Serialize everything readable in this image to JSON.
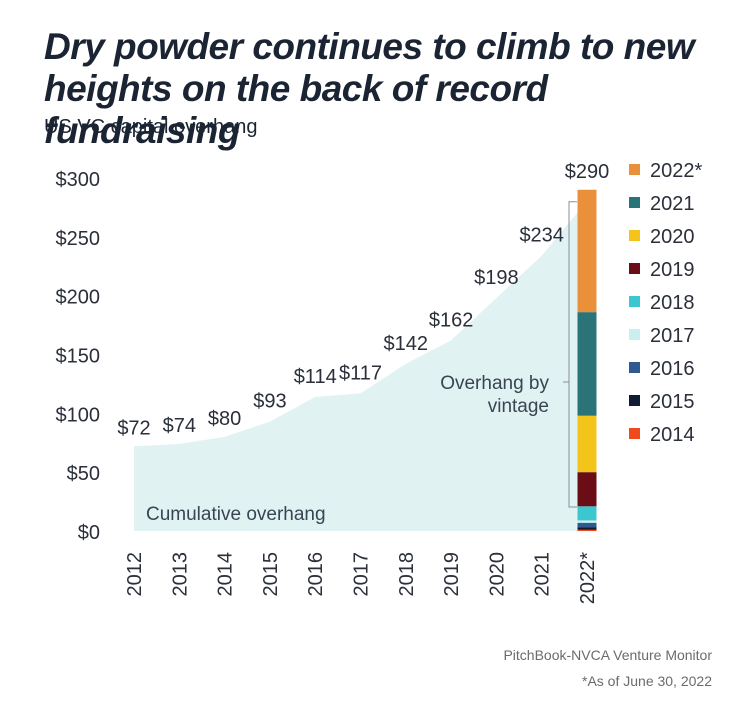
{
  "title": "Dry powder continues to climb to new heights on the back of record fundraising",
  "subtitle": "US VC capital overhang",
  "source": "PitchBook-NVCA Venture Monitor",
  "footnote": "*As of June 30, 2022",
  "colors": {
    "area": "#e1f2f2",
    "text": "#1b2433",
    "axis_text": "#2a2f3a"
  },
  "chart_data": {
    "type": "area",
    "x": [
      "2012",
      "2013",
      "2014",
      "2015",
      "2016",
      "2017",
      "2018",
      "2019",
      "2020",
      "2021",
      "2022*"
    ],
    "values": [
      72,
      74,
      80,
      93,
      114,
      117,
      142,
      162,
      198,
      234,
      290
    ],
    "value_labels": [
      "$72",
      "$74",
      "$80",
      "$93",
      "$114",
      "$117",
      "$142",
      "$162",
      "$198",
      "$234",
      "$290"
    ],
    "ylim": [
      0,
      300
    ],
    "yticks": [
      0,
      50,
      100,
      150,
      200,
      250,
      300
    ],
    "ytick_labels": [
      "$0",
      "$50",
      "$100",
      "$150",
      "$200",
      "$250",
      "$300"
    ],
    "area_label": "Cumulative overhang",
    "bar_label": "Overhang by vintage",
    "stacked_bar": {
      "category": "2022*",
      "segments": [
        {
          "name": "2014",
          "value": 1,
          "color": "#f04a1c"
        },
        {
          "name": "2015",
          "value": 2,
          "color": "#101c33"
        },
        {
          "name": "2016",
          "value": 4,
          "color": "#2f5a8f"
        },
        {
          "name": "2017",
          "value": 2,
          "color": "#cbeeee"
        },
        {
          "name": "2018",
          "value": 12,
          "color": "#3cc6cf"
        },
        {
          "name": "2019",
          "value": 29,
          "color": "#6b0d17"
        },
        {
          "name": "2020",
          "value": 48,
          "color": "#f3c51b"
        },
        {
          "name": "2021",
          "value": 88,
          "color": "#2a7378"
        },
        {
          "name": "2022*",
          "value": 104,
          "color": "#ea8f3a"
        }
      ]
    },
    "legend": [
      "2022*",
      "2021",
      "2020",
      "2019",
      "2018",
      "2017",
      "2016",
      "2015",
      "2014"
    ],
    "legend_position": "right"
  }
}
